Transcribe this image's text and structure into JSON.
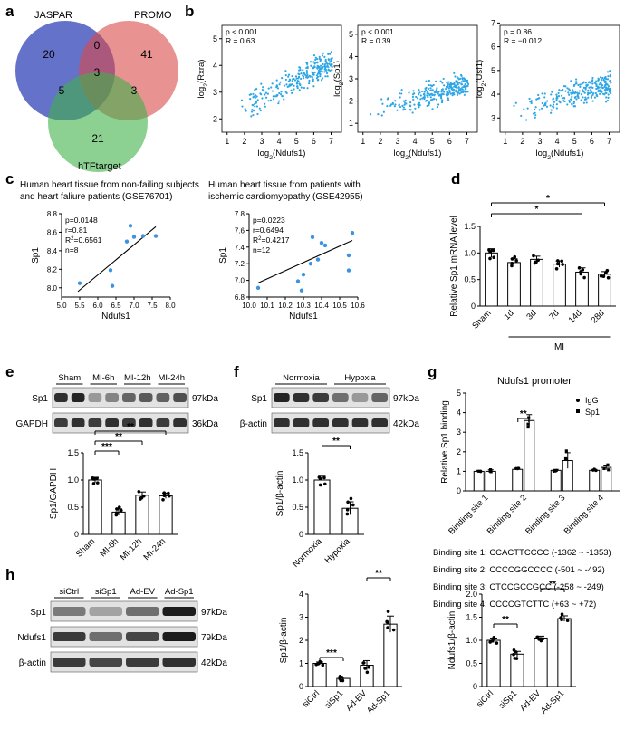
{
  "panel_letters": [
    "a",
    "b",
    "c",
    "d",
    "e",
    "f",
    "g",
    "h"
  ],
  "venn": {
    "sets": [
      "JASPAR",
      "PROMO",
      "hTFtarget"
    ],
    "counts": {
      "jaspar_only": "20",
      "promo_only": "41",
      "htf_only": "21",
      "jaspar_promo": "0",
      "jaspar_htf": "5",
      "promo_htf": "3",
      "all": "3"
    }
  },
  "panel_b": {
    "x_label": "log2(Ndufs1)",
    "x_ticks": [
      1,
      2,
      3,
      4,
      5,
      6,
      7
    ],
    "plots": [
      {
        "y_label": "log2(Rxra)",
        "p": "p < 0.001",
        "r": "R = 0.63",
        "ylim": [
          1.5,
          5.5
        ],
        "y_ticks": [
          2,
          3,
          4,
          5
        ],
        "trend": {
          "slope": 0.33,
          "intercept": 1.8,
          "noise": 0.45
        }
      },
      {
        "y_label": "log2(Sp1)",
        "p": "p < 0.001",
        "r": "R = 0.39",
        "ylim": [
          0.6,
          5.4
        ],
        "y_ticks": [
          1,
          2,
          3,
          4,
          5
        ],
        "trend": {
          "slope": 0.22,
          "intercept": 1.2,
          "noise": 0.55
        }
      },
      {
        "y_label": "log2(Usf1)",
        "p": "p = 0.86",
        "r": "R = −0.012",
        "ylim": [
          2.4,
          6.9
        ],
        "y_ticks": [
          3,
          4,
          5,
          6,
          7
        ],
        "trend": {
          "slope": 0.2,
          "intercept": 3.0,
          "noise": 0.55
        }
      }
    ]
  },
  "panel_c": {
    "x_label": "Ndufs1",
    "y_label": "Sp1",
    "plots": [
      {
        "title1": "Human heart tissue from non-failing subjects",
        "title2": "and heart faliure patients (GSE76701)",
        "stats": [
          "p=0.0148",
          "r=0.81",
          "R2=0.6561",
          "n=8"
        ],
        "xlim": [
          5.0,
          8.0
        ],
        "x_ticks": [
          "5.0",
          "5.5",
          "6.0",
          "6.5",
          "7.0",
          "7.5",
          "8.0"
        ],
        "ylim": [
          7.9,
          8.8
        ],
        "y_ticks": [
          "8.0",
          "8.2",
          "8.4",
          "8.6",
          "8.8"
        ],
        "points": [
          [
            5.5,
            8.05
          ],
          [
            6.35,
            8.19
          ],
          [
            6.4,
            8.02
          ],
          [
            6.8,
            8.5
          ],
          [
            6.9,
            8.67
          ],
          [
            7.0,
            8.55
          ],
          [
            7.25,
            8.56
          ],
          [
            7.6,
            8.56
          ]
        ],
        "fit": [
          [
            5.45,
            7.96
          ],
          [
            7.6,
            8.66
          ]
        ]
      },
      {
        "title1": "Human heart tissue from patients with",
        "title2": "ischemic cardiomyopathy (GSE42955)",
        "stats": [
          "p=0.0223",
          "r=0.6494",
          "R2=0.4217",
          "n=12"
        ],
        "xlim": [
          10.0,
          10.6
        ],
        "x_ticks": [
          "10.0",
          "10.1",
          "10.2",
          "10.3",
          "10.4",
          "10.5",
          "10.6"
        ],
        "ylim": [
          6.8,
          7.8
        ],
        "y_ticks": [
          "6.8",
          "7.0",
          "7.2",
          "7.4",
          "7.6",
          "7.8"
        ],
        "points": [
          [
            10.05,
            6.91
          ],
          [
            10.27,
            6.99
          ],
          [
            10.29,
            6.88
          ],
          [
            10.3,
            7.07
          ],
          [
            10.34,
            7.2
          ],
          [
            10.38,
            7.25
          ],
          [
            10.4,
            7.45
          ],
          [
            10.42,
            7.42
          ],
          [
            10.35,
            7.52
          ],
          [
            10.55,
            7.3
          ],
          [
            10.57,
            7.57
          ],
          [
            10.55,
            7.12
          ]
        ],
        "fit": [
          [
            10.05,
            6.97
          ],
          [
            10.57,
            7.48
          ]
        ]
      }
    ]
  },
  "panel_d": {
    "y_label": "Relative Sp1 mRNA level",
    "ylim": [
      0,
      1.5
    ],
    "y_ticks": [
      "0",
      "0.5",
      "1.0",
      "1.5"
    ],
    "categories": [
      "Sham",
      "1d",
      "3d",
      "7d",
      "14d",
      "28d"
    ],
    "values": [
      1.0,
      0.82,
      0.88,
      0.79,
      0.64,
      0.6
    ],
    "errors": [
      0.08,
      0.07,
      0.06,
      0.06,
      0.08,
      0.05
    ],
    "group_label": "MI",
    "sig": [
      "*",
      "*"
    ]
  },
  "panel_e": {
    "blot_groups": [
      "Sham",
      "MI-6h",
      "MI-12h",
      "MI-24h"
    ],
    "blot_rows": [
      {
        "name": "Sp1",
        "kda": "97kDa"
      },
      {
        "name": "GAPDH",
        "kda": "36kDa"
      }
    ],
    "y_label": "Sp1/GAPDH",
    "ylim": [
      0,
      1.5
    ],
    "y_ticks": [
      "0",
      "0.5",
      "1.0",
      "1.5"
    ],
    "categories": [
      "Sham",
      "MI-6h",
      "MI-12h",
      "MI-24h"
    ],
    "values": [
      1.0,
      0.41,
      0.72,
      0.71
    ],
    "errors": [
      0.05,
      0.06,
      0.06,
      0.05
    ],
    "sig": [
      "***",
      "**",
      "**"
    ]
  },
  "panel_f": {
    "blot_groups": [
      "Normoxia",
      "Hypoxia"
    ],
    "blot_rows": [
      {
        "name": "Sp1",
        "kda": "97kDa"
      },
      {
        "name": "β-actin",
        "kda": "42kDa"
      }
    ],
    "y_label": "Sp1/β-actin",
    "ylim": [
      0,
      1.5
    ],
    "y_ticks": [
      "0",
      "0.5",
      "1.0",
      "1.5"
    ],
    "categories": [
      "Normoxia",
      "Hypoxia"
    ],
    "values": [
      1.0,
      0.48
    ],
    "errors": [
      0.07,
      0.12
    ],
    "sig": [
      "**"
    ]
  },
  "panel_g": {
    "title": "Ndufs1 promoter",
    "y_label": "Relative Sp1 binding",
    "ylim": [
      0,
      5
    ],
    "y_ticks": [
      "0",
      "1",
      "2",
      "3",
      "4",
      "5"
    ],
    "categories": [
      "Binding site 1",
      "Binding site 2",
      "Binding site 3",
      "Binding site 4"
    ],
    "series": [
      {
        "name": "IgG",
        "values": [
          1.0,
          1.1,
          1.05,
          1.05
        ],
        "errors": [
          0.05,
          0.05,
          0.05,
          0.05
        ]
      },
      {
        "name": "Sp1",
        "values": [
          1.0,
          3.6,
          1.55,
          1.2
        ],
        "errors": [
          0.08,
          0.3,
          0.4,
          0.12
        ]
      }
    ],
    "sig": [
      "**"
    ],
    "sites": [
      "Binding site 1: CCACTTCCCC (-1362 ~ -1353)",
      "Binding site 2: CCCCGGCCCC (-501 ~ -492)",
      "Binding site 3: CTCCGCCGCC (-258 ~ -249)",
      "Binding site 4: CCCCGTCTTC (+63 ~ +72)"
    ]
  },
  "panel_h": {
    "blot_groups": [
      "siCtrl",
      "siSp1",
      "Ad-EV",
      "Ad-Sp1"
    ],
    "blot_rows": [
      {
        "name": "Sp1",
        "kda": "97kDa"
      },
      {
        "name": "Ndufs1",
        "kda": "79kDa"
      },
      {
        "name": "β-actin",
        "kda": "42kDa"
      }
    ],
    "charts": [
      {
        "y_label": "Sp1/β-actin",
        "ylim": [
          0,
          4
        ],
        "y_ticks": [
          "0",
          "1",
          "2",
          "3",
          "4"
        ],
        "categories": [
          "siCtrl",
          "siSp1",
          "Ad-EV",
          "Ad-Sp1"
        ],
        "values": [
          1.0,
          0.35,
          0.92,
          2.7
        ],
        "errors": [
          0.06,
          0.06,
          0.2,
          0.35
        ],
        "sig": [
          "***",
          "**"
        ]
      },
      {
        "y_label": "Ndufs1/β-actin",
        "ylim": [
          0,
          2.0
        ],
        "y_ticks": [
          "0",
          "0.5",
          "1.0",
          "1.5",
          "2.0"
        ],
        "categories": [
          "siCtrl",
          "siSp1",
          "Ad-EV",
          "Ad-Sp1"
        ],
        "values": [
          1.0,
          0.7,
          1.05,
          1.47
        ],
        "errors": [
          0.05,
          0.06,
          0.04,
          0.06
        ],
        "sig": [
          "**",
          "**"
        ]
      }
    ]
  }
}
